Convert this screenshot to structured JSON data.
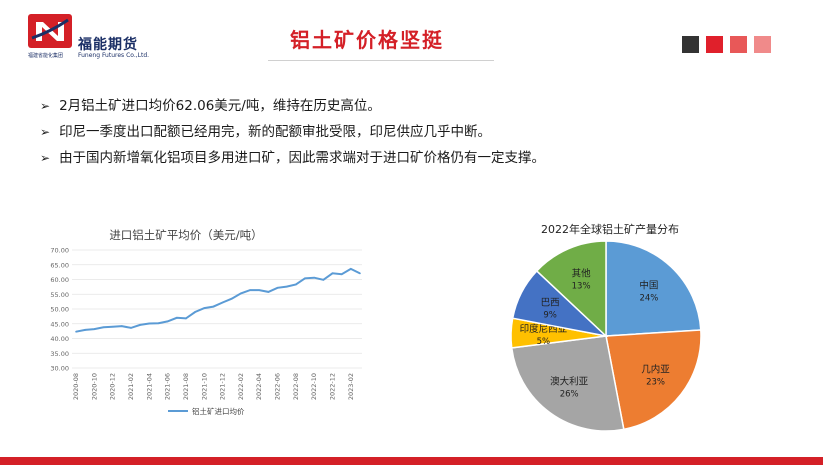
{
  "header": {
    "logo_cn": "福能期货",
    "logo_en": "Funeng Futures Co.,Ltd.",
    "logo_sub": "福建省能化集团",
    "title": "铝土矿价格坚挺",
    "accent_squares": [
      "#333333",
      "#e0202b",
      "#e85858",
      "#f08a8a"
    ]
  },
  "bullets": [
    "2月铝土矿进口均价62.06美元/吨，维持在历史高位。",
    "印尼一季度出口配额已经用完，新的配额审批受限，印尼供应几乎中断。",
    "由于国内新增氧化铝项目多用进口矿，因此需求端对于进口矿价格仍有一定支撑。"
  ],
  "chart_data": [
    {
      "type": "line",
      "title": "进口铝土矿平均价（美元/吨）",
      "ylim": [
        30,
        70
      ],
      "yticks": [
        "30.00",
        "35.00",
        "40.00",
        "45.00",
        "50.00",
        "55.00",
        "60.00",
        "65.00",
        "70.00"
      ],
      "tick_labels": [
        "2020-08",
        "2020-10",
        "2020-12",
        "2021-02",
        "2021-04",
        "2021-06",
        "2021-08",
        "2021-10",
        "2021-12",
        "2022-02",
        "2022-04",
        "2022-06",
        "2022-08",
        "2022-10",
        "2022-12",
        "2023-02"
      ],
      "series": [
        {
          "name": "铝土矿进口均价",
          "color": "#5b9bd5",
          "values": [
            42.3,
            42.9,
            43.2,
            43.8,
            44.0,
            44.2,
            43.6,
            44.6,
            45.1,
            45.2,
            45.8,
            47.0,
            46.8,
            49.0,
            50.3,
            50.8,
            52.2,
            53.5,
            55.3,
            56.4,
            56.4,
            55.8,
            57.2,
            57.6,
            58.3,
            60.4,
            60.6,
            59.9,
            62.1,
            61.8,
            63.6,
            62.06
          ]
        }
      ],
      "grid": true,
      "legend_position": "bottom"
    },
    {
      "type": "pie",
      "title": "2022年全球铝土矿产量分布",
      "slices": [
        {
          "label": "中国",
          "value": 24,
          "pct": "24%",
          "color": "#5b9bd5"
        },
        {
          "label": "几内亚",
          "value": 23,
          "pct": "23%",
          "color": "#ed7d31"
        },
        {
          "label": "澳大利亚",
          "value": 26,
          "pct": "26%",
          "color": "#a5a5a5"
        },
        {
          "label": "印度尼西亚",
          "value": 5,
          "pct": "5%",
          "color": "#ffc000"
        },
        {
          "label": "巴西",
          "value": 9,
          "pct": "9%",
          "color": "#4472c4"
        },
        {
          "label": "其他",
          "value": 13,
          "pct": "13%",
          "color": "#70ad47"
        }
      ]
    }
  ]
}
